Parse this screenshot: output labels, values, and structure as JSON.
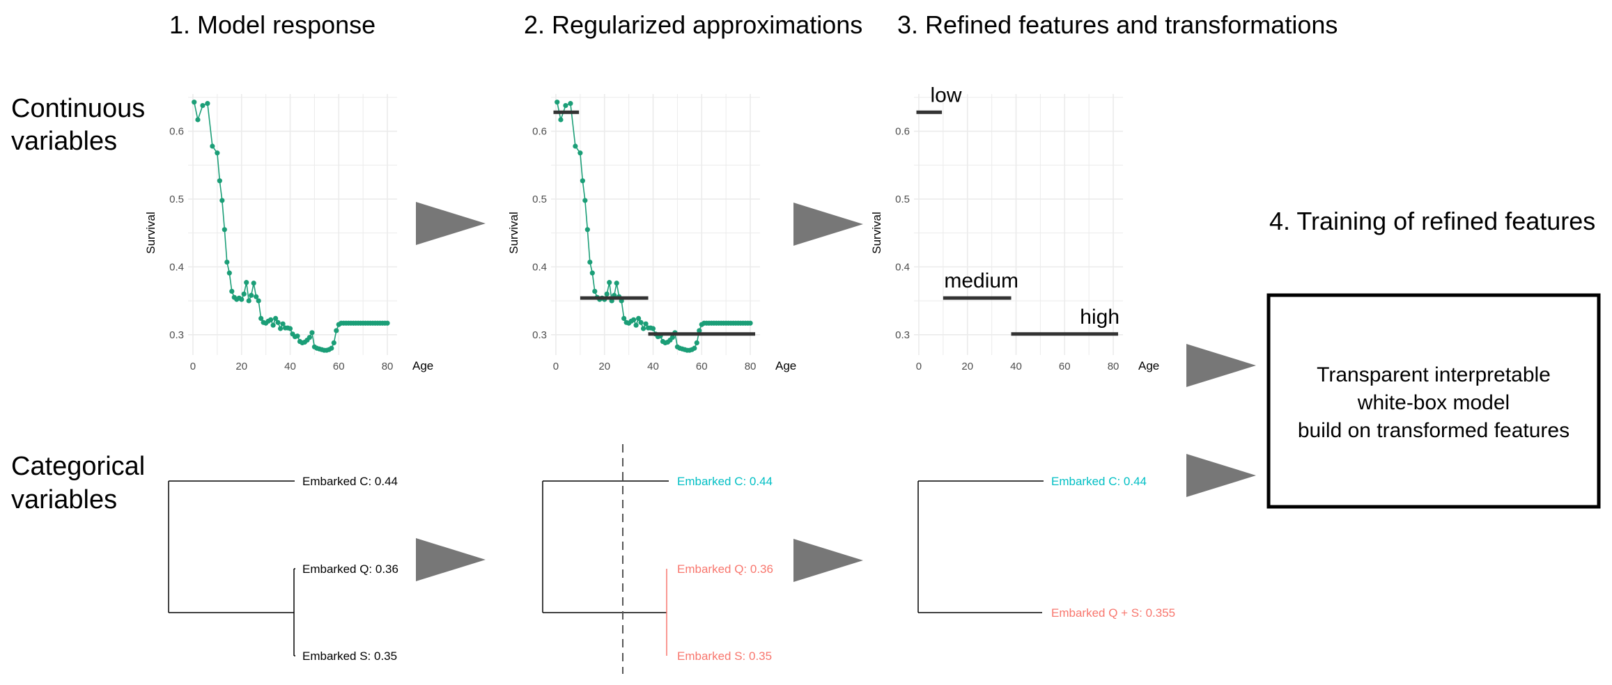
{
  "steps": {
    "step1": "1. Model response",
    "step2": "2. Regularized approximations",
    "step3": "3. Refined features and transformations",
    "step4": "4. Training of refined features"
  },
  "row_labels": {
    "continuous": [
      "Continuous",
      "variables"
    ],
    "categorical": [
      "Categorical",
      "variables"
    ]
  },
  "colors": {
    "series": "#1b9e77",
    "step": "#333333",
    "grid": "#ebebeb",
    "arrow": "#777777",
    "cyan": "#00bfc4",
    "red": "#f8766d"
  },
  "chart_data": [
    {
      "type": "line",
      "panel": "model-response",
      "xlabel": "Age",
      "ylabel": "Survival",
      "xticks": [
        0,
        20,
        40,
        60,
        80
      ],
      "yticks": [
        0.3,
        0.4,
        0.5,
        0.6
      ],
      "xlim": [
        -2,
        84
      ],
      "ylim": [
        0.27,
        0.655
      ],
      "grid": true,
      "series": [
        {
          "x": [
            0.5,
            2,
            4,
            6,
            8,
            10,
            11,
            12,
            13,
            14,
            15,
            16,
            17,
            18,
            19,
            20,
            21,
            22,
            23,
            24,
            25,
            26,
            27,
            28,
            29,
            30,
            31,
            32,
            33,
            34,
            35,
            36,
            37,
            38,
            39,
            40,
            41,
            42,
            43,
            44,
            45,
            46,
            47,
            48,
            49,
            50,
            51,
            52,
            53,
            54,
            55,
            56,
            57,
            58,
            59,
            60,
            61,
            62,
            63,
            64,
            65,
            66,
            67,
            68,
            69,
            70,
            71,
            72,
            73,
            74,
            75,
            76,
            77,
            78,
            79,
            80
          ],
          "y": [
            0.643,
            0.617,
            0.638,
            0.641,
            0.578,
            0.568,
            0.527,
            0.498,
            0.455,
            0.407,
            0.391,
            0.364,
            0.355,
            0.352,
            0.354,
            0.352,
            0.36,
            0.377,
            0.35,
            0.358,
            0.376,
            0.356,
            0.35,
            0.324,
            0.318,
            0.317,
            0.32,
            0.322,
            0.314,
            0.324,
            0.318,
            0.309,
            0.316,
            0.31,
            0.31,
            0.309,
            0.301,
            0.297,
            0.298,
            0.29,
            0.288,
            0.289,
            0.292,
            0.296,
            0.303,
            0.282,
            0.28,
            0.279,
            0.278,
            0.277,
            0.277,
            0.278,
            0.28,
            0.288,
            0.306,
            0.315,
            0.317,
            0.317,
            0.317,
            0.317,
            0.317,
            0.317,
            0.317,
            0.317,
            0.317,
            0.317,
            0.317,
            0.317,
            0.317,
            0.317,
            0.317,
            0.317,
            0.317,
            0.317,
            0.317,
            0.317
          ]
        }
      ]
    },
    {
      "type": "line",
      "panel": "regularized-approximation",
      "xlabel": "Age",
      "ylabel": "Survival",
      "xticks": [
        0,
        20,
        40,
        60,
        80
      ],
      "yticks": [
        0.3,
        0.4,
        0.5,
        0.6
      ],
      "xlim": [
        -2,
        84
      ],
      "ylim": [
        0.27,
        0.655
      ],
      "grid": true,
      "steps": [
        {
          "x0": -1,
          "x1": 9.5,
          "y": 0.628
        },
        {
          "x0": 10,
          "x1": 38,
          "y": 0.354
        },
        {
          "x0": 38,
          "x1": 82,
          "y": 0.301
        }
      ]
    },
    {
      "type": "line",
      "panel": "refined-features",
      "xlabel": "Age",
      "ylabel": "Survival",
      "xticks": [
        0,
        20,
        40,
        60,
        80
      ],
      "yticks": [
        0.3,
        0.4,
        0.5,
        0.6
      ],
      "xlim": [
        -2,
        84
      ],
      "ylim": [
        0.27,
        0.655
      ],
      "grid": true,
      "steps": [
        {
          "x0": -1,
          "x1": 9.5,
          "y": 0.628,
          "label": "low"
        },
        {
          "x0": 10,
          "x1": 38,
          "y": 0.354,
          "label": "medium"
        },
        {
          "x0": 38,
          "x1": 82,
          "y": 0.301,
          "label": "high"
        }
      ]
    }
  ],
  "dendrograms": {
    "panel1": [
      "Embarked C: 0.44",
      "Embarked Q: 0.36",
      "Embarked S: 0.35"
    ],
    "panel2": [
      "Embarked C: 0.44",
      "Embarked Q: 0.36",
      "Embarked S: 0.35"
    ],
    "panel3": [
      "Embarked C: 0.44",
      "Embarked Q + S: 0.355"
    ]
  },
  "result_box": {
    "lines": [
      "Transparent interpretable",
      "white-box model",
      "build on transformed features"
    ]
  }
}
